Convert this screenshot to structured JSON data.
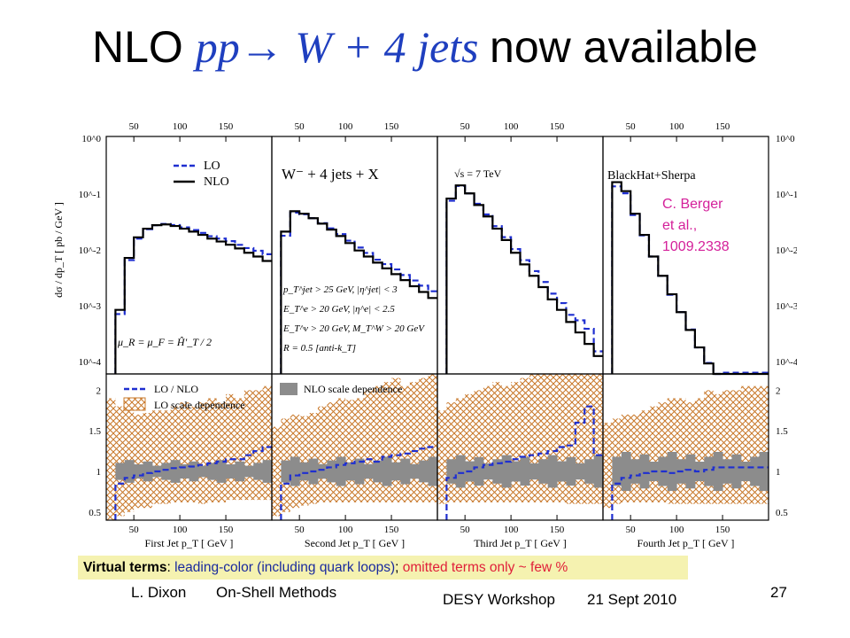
{
  "slide": {
    "title": {
      "prefix": "NLO ",
      "process": "pp",
      "arrow": "→",
      "final_state": " W + 4 jets ",
      "suffix": "now available"
    },
    "citation": [
      "C. Berger",
      "et al.,",
      "1009.2338"
    ],
    "virtual_terms": {
      "label": "Virtual terms",
      "sep": ": ",
      "leading": "leading-color (including quark loops)",
      "sep2": "; ",
      "omitted": "omitted terms only ~ few %"
    },
    "footer": {
      "author": "L. Dixon",
      "talk": "On-Shell Methods",
      "event": "DESY Workshop",
      "date": "21 Sept 2010",
      "page": "27"
    }
  },
  "colors": {
    "lo": "#1f2fd0",
    "nlo": "#000000",
    "citation": "#d4209a",
    "hatch": "#c8782a",
    "band": "#8c8c8c"
  },
  "chart_data": {
    "type": "line",
    "top_y_axis": {
      "label": "dσ / dp_T   [ pb / GeV ]",
      "scale": "log",
      "ylim": [
        0.0001,
        1
      ],
      "ticks": [
        "10^0",
        "10^-1",
        "10^-2",
        "10^-3",
        "10^-4"
      ]
    },
    "bottom_y_axis": {
      "ticks": [
        "2",
        "1.5",
        "1",
        "0.5"
      ],
      "ylim": [
        0.4,
        2.2
      ]
    },
    "top_x_ticks": [
      "50",
      "100",
      "150"
    ],
    "legend_top": [
      "LO",
      "NLO"
    ],
    "legend_bottom_lo_nlo": "LO / NLO",
    "legend_bottom_lo_scale": "LO scale dependence",
    "legend_bottom_nlo_scale": "NLO scale dependence",
    "process_label": "W⁻ + 4 jets + X",
    "energy_label": "√s = 7 TeV",
    "generator_label": "BlackHat+Sherpa",
    "scale_label": "μ_R = μ_F = Ĥ′_T / 2",
    "cuts": [
      "p_T^jet > 25 GeV, |η^jet| < 3",
      "E_T^e > 20 GeV, |η^e| < 2.5",
      "E_T^ν > 20 GeV, M_T^W > 20 GeV",
      "R = 0.5  [anti-k_T]"
    ],
    "panels": [
      {
        "xlabel": "First  Jet   p_T  [ GeV ]",
        "xrange": [
          20,
          200
        ],
        "nlo": [
          0.0001,
          0.0012,
          0.009,
          0.02,
          0.028,
          0.032,
          0.033,
          0.031,
          0.028,
          0.025,
          0.022,
          0.019,
          0.017,
          0.015,
          0.013,
          0.011,
          0.0095,
          0.008
        ],
        "ratio": [
          0.7,
          0.85,
          0.92,
          0.95,
          0.98,
          1.0,
          1.02,
          1.04,
          1.05,
          1.06,
          1.08,
          1.1,
          1.12,
          1.15,
          1.15,
          1.2,
          1.25,
          1.3
        ],
        "band_half": 0.07,
        "hatch_low": [
          0.4,
          0.45,
          0.5,
          0.55,
          0.55,
          0.6,
          0.6,
          0.62,
          0.62,
          0.62,
          0.6,
          0.62,
          0.62,
          0.65,
          0.65,
          0.65,
          0.65,
          0.65
        ],
        "hatch_high": [
          1.9,
          1.8,
          1.75,
          1.7,
          1.72,
          1.75,
          1.75,
          1.8,
          1.85,
          1.8,
          1.85,
          1.9,
          1.85,
          1.95,
          1.9,
          2.0,
          2.0,
          2.05
        ]
      },
      {
        "xlabel": "Second  Jet   p_T  [ GeV ]",
        "xrange": [
          20,
          200
        ],
        "nlo": [
          0.0001,
          0.025,
          0.055,
          0.05,
          0.042,
          0.034,
          0.027,
          0.021,
          0.016,
          0.012,
          0.0095,
          0.0075,
          0.006,
          0.0048,
          0.0038,
          0.003,
          0.0024,
          0.0019
        ],
        "ratio": [
          0.7,
          0.85,
          0.95,
          0.98,
          1.0,
          1.02,
          1.05,
          1.08,
          1.1,
          1.12,
          1.15,
          1.12,
          1.18,
          1.2,
          1.22,
          1.25,
          1.28,
          1.3
        ],
        "band_half": 0.09,
        "hatch_low": [
          0.45,
          0.5,
          0.55,
          0.58,
          0.6,
          0.62,
          0.62,
          0.62,
          0.62,
          0.62,
          0.62,
          0.62,
          0.62,
          0.62,
          0.62,
          0.62,
          0.62,
          0.62
        ],
        "hatch_high": [
          1.55,
          1.65,
          1.7,
          1.68,
          1.72,
          1.8,
          1.85,
          1.9,
          1.88,
          1.9,
          2.0,
          2.05,
          2.1,
          2.15,
          2.05,
          2.1,
          2.15,
          2.2
        ]
      },
      {
        "xlabel": "Third  Jet   p_T  [ GeV ]",
        "xrange": [
          20,
          200
        ],
        "nlo": [
          0.0001,
          0.09,
          0.15,
          0.11,
          0.07,
          0.045,
          0.028,
          0.018,
          0.011,
          0.007,
          0.0045,
          0.0029,
          0.0018,
          0.0012,
          0.00075,
          0.0005,
          0.00032,
          0.0002
        ],
        "ratio": [
          0.8,
          0.92,
          0.98,
          1.0,
          1.05,
          1.08,
          1.1,
          1.12,
          1.15,
          1.18,
          1.2,
          1.22,
          1.25,
          1.3,
          1.32,
          1.6,
          1.8,
          1.2
        ],
        "band_half": 0.1,
        "hatch_low": [
          0.6,
          0.62,
          0.62,
          0.62,
          0.62,
          0.62,
          0.62,
          0.62,
          0.62,
          0.62,
          0.62,
          0.62,
          0.62,
          0.62,
          0.6,
          0.6,
          0.6,
          0.6
        ],
        "hatch_high": [
          1.75,
          1.85,
          1.9,
          1.95,
          2.0,
          2.05,
          2.1,
          2.05,
          2.1,
          2.15,
          2.2,
          2.2,
          2.2,
          2.2,
          2.2,
          2.2,
          2.2,
          2.2
        ]
      },
      {
        "xlabel": "Fourth  Jet   p_T  [ GeV ]",
        "xrange": [
          20,
          200
        ],
        "nlo": [
          0.0001,
          0.17,
          0.12,
          0.05,
          0.022,
          0.0095,
          0.0045,
          0.0022,
          0.0011,
          0.00055,
          0.00028,
          0.00015,
          9e-05,
          0.0001,
          0.0001,
          0.0001,
          0.0001,
          0.0001
        ],
        "ratio": [
          0.7,
          0.85,
          0.92,
          0.95,
          0.98,
          1.0,
          1.0,
          0.98,
          1.0,
          1.02,
          1.0,
          1.02,
          1.05,
          1.05,
          1.05,
          1.05,
          1.05,
          1.05
        ],
        "band_half": 0.12,
        "hatch_low": [
          0.55,
          0.6,
          0.62,
          0.62,
          0.62,
          0.62,
          0.62,
          0.6,
          0.6,
          0.6,
          0.6,
          0.6,
          0.6,
          0.6,
          0.6,
          0.6,
          0.6,
          0.6
        ],
        "hatch_high": [
          1.6,
          1.65,
          1.7,
          1.7,
          1.75,
          1.8,
          1.85,
          1.9,
          1.9,
          1.85,
          1.9,
          2.0,
          1.95,
          2.0,
          2.0,
          2.05,
          2.05,
          2.05
        ]
      }
    ]
  }
}
